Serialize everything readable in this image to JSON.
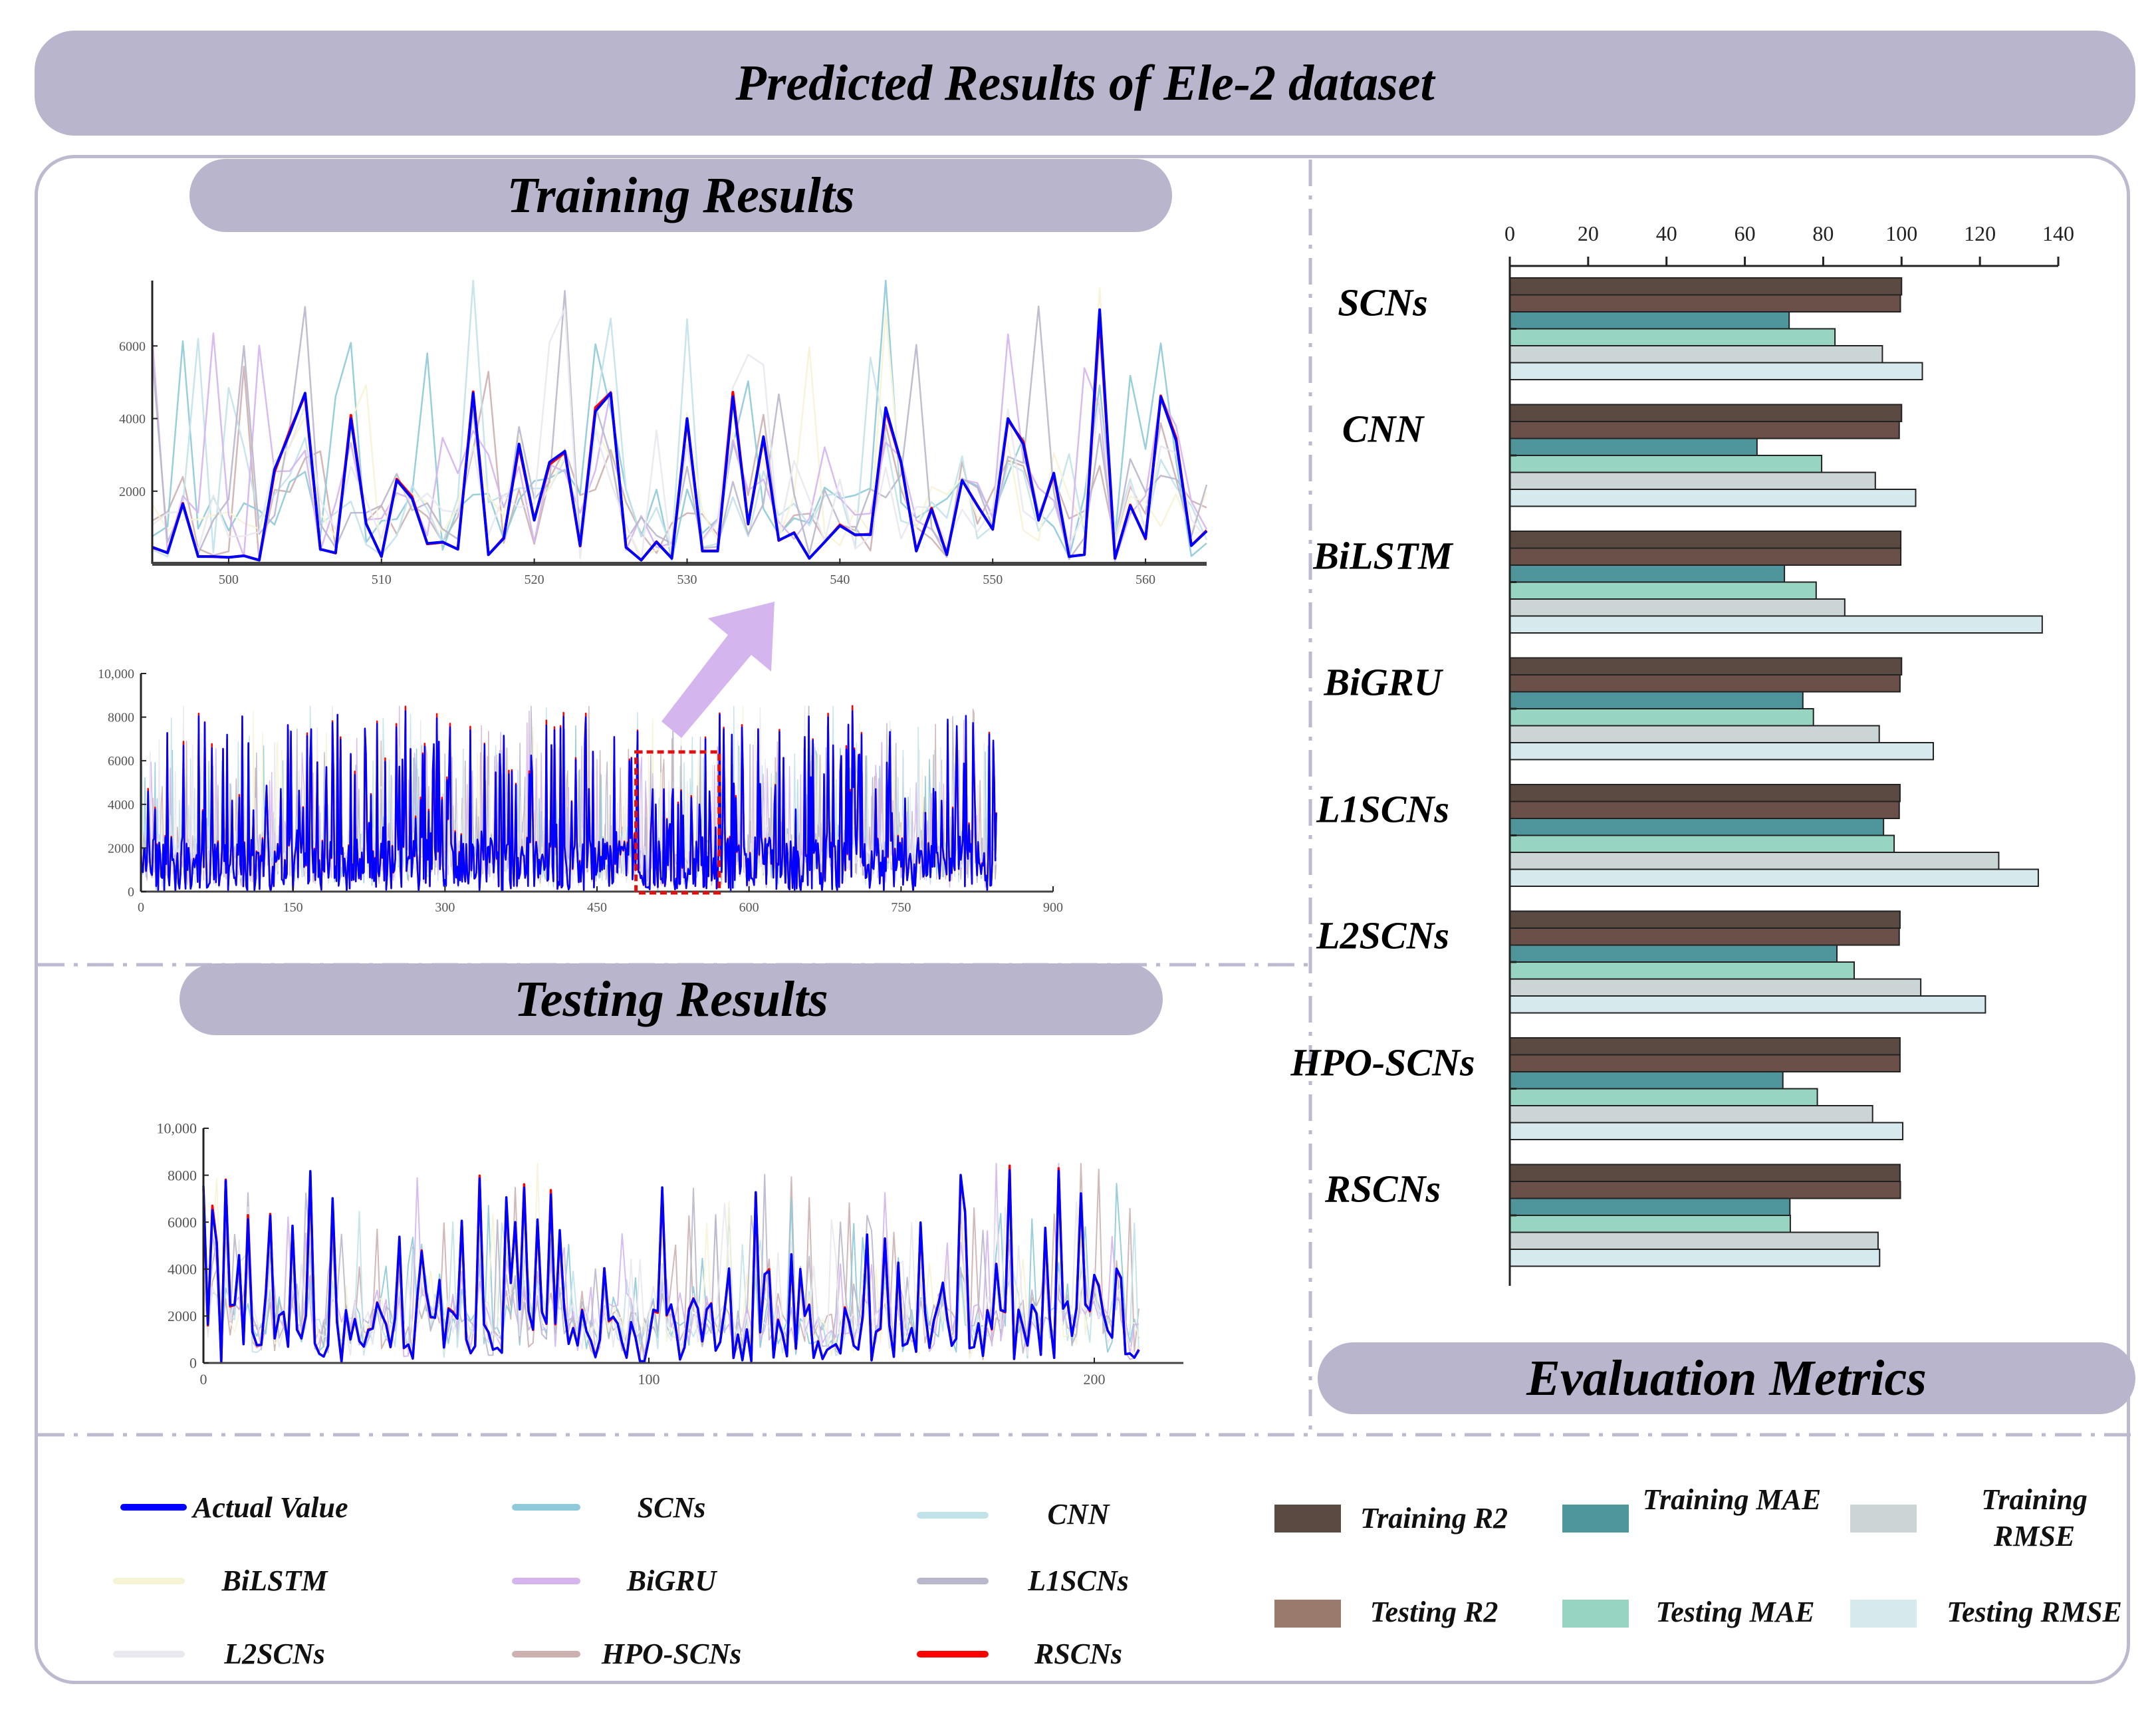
{
  "title": "Predicted Results of  Ele-2 dataset",
  "sections": {
    "training": "Training Results",
    "testing": "Testing Results",
    "metrics": "Evaluation Metrics"
  },
  "line_legend": [
    {
      "label": "Actual Value",
      "color": "#0000ff"
    },
    {
      "label": "SCNs",
      "color": "#8ecad9"
    },
    {
      "label": "CNN",
      "color": "#c2e2ea"
    },
    {
      "label": "BiLSTM",
      "color": "#f7f3d6"
    },
    {
      "label": "BiGRU",
      "color": "#d4b5ee"
    },
    {
      "label": "L1SCNs",
      "color": "#b9b7cb"
    },
    {
      "label": "L2SCNs",
      "color": "#e8e8ee"
    },
    {
      "label": "HPO-SCNs",
      "color": "#cdb0b0"
    },
    {
      "label": "RSCNs",
      "color": "#ff0000"
    }
  ],
  "metric_legend": [
    {
      "label": "Training R2",
      "color": "#5a4a42",
      "bar_color": "#5a4a42"
    },
    {
      "label": "Training MAE",
      "color": "#4f959c",
      "bar_color": "#4f959c"
    },
    {
      "label": "Training RMSE",
      "color": "#cbd5d6",
      "bar_color": "#cbd5d6"
    },
    {
      "label": "Testing R2",
      "color": "#9b7a6e",
      "bar_color": "#6a5049"
    },
    {
      "label": "Testing MAE",
      "color": "#98d4c2",
      "bar_color": "#98d4c2"
    },
    {
      "label": "Testing RMSE",
      "color": "#d6e9ec",
      "bar_color": "#d6e9ec"
    }
  ],
  "chart_data": [
    {
      "id": "training_zoom",
      "type": "line",
      "title": "",
      "xlim": [
        495,
        564
      ],
      "ylim": [
        0,
        7800
      ],
      "xticks": [
        500,
        510,
        520,
        530,
        540,
        550,
        560
      ],
      "yticks": [
        2000,
        4000,
        6000
      ],
      "x_start": 495,
      "actual": [
        460,
        300,
        1650,
        200,
        200,
        180,
        220,
        100,
        2600,
        3600,
        4700,
        400,
        300,
        4000,
        1100,
        200,
        2300,
        1800,
        560,
        600,
        400,
        4700,
        250,
        700,
        3300,
        1200,
        2800,
        3100,
        500,
        4200,
        4700,
        450,
        100,
        600,
        150,
        4000,
        350,
        350,
        4600,
        1100,
        3500,
        650,
        850,
        150,
        600,
        1050,
        800,
        800,
        4300,
        2800,
        350,
        1500,
        250,
        2300,
        1600,
        950,
        4000,
        3300,
        1200,
        2500,
        200,
        250,
        7000,
        150,
        1600,
        700,
        4600,
        3400,
        500,
        900
      ]
    },
    {
      "id": "training_full",
      "type": "line",
      "xlim": [
        0,
        900
      ],
      "ylim": [
        0,
        10000
      ],
      "xticks": [
        0,
        150,
        300,
        450,
        600,
        750,
        900
      ],
      "yticks": [
        0,
        2000,
        4000,
        6000,
        8000,
        10000
      ],
      "ytick_labels": [
        "0",
        "2000",
        "4000",
        "6000",
        "8000",
        "10,000"
      ],
      "n_points": 845,
      "highlight_range": [
        495,
        564
      ]
    },
    {
      "id": "testing_full",
      "type": "line",
      "xlim": [
        0,
        220
      ],
      "ylim": [
        0,
        10000
      ],
      "xticks": [
        0,
        100,
        200
      ],
      "yticks": [
        0,
        2000,
        4000,
        6000,
        8000,
        10000
      ],
      "ytick_labels": [
        "0",
        "2000",
        "4000",
        "6000",
        "8000",
        "10,000"
      ],
      "n_points": 211
    },
    {
      "id": "metrics",
      "type": "bar",
      "orientation": "horizontal",
      "xlim": [
        0,
        140
      ],
      "xticks": [
        0,
        20,
        40,
        60,
        80,
        100,
        120,
        140
      ],
      "categories": [
        "SCNs",
        "CNN",
        "BiLSTM",
        "BiGRU",
        "L1SCNs",
        "L2SCNs",
        "HPO-SCNs",
        "RSCNs"
      ],
      "series": [
        {
          "name": "Training R2",
          "values": [
            100,
            100,
            99.8,
            100,
            99.6,
            99.6,
            99.6,
            99.6
          ]
        },
        {
          "name": "Testing R2",
          "values": [
            99.7,
            99.4,
            99.8,
            99.6,
            99.4,
            99.4,
            99.6,
            99.7
          ]
        },
        {
          "name": "Training MAE",
          "values": [
            71.3,
            63.1,
            70.1,
            74.8,
            95.4,
            83.5,
            69.7,
            71.5
          ]
        },
        {
          "name": "Testing MAE",
          "values": [
            83.0,
            79.6,
            78.2,
            77.5,
            98.1,
            87.9,
            78.5,
            71.6
          ]
        },
        {
          "name": "Training RMSE",
          "values": [
            95.1,
            93.3,
            85.5,
            94.3,
            124.8,
            104.9,
            92.6,
            94.0
          ]
        },
        {
          "name": "Testing RMSE",
          "values": [
            105.3,
            103.6,
            135.9,
            108.1,
            134.9,
            121.4,
            100.3,
            94.4
          ]
        }
      ]
    }
  ]
}
